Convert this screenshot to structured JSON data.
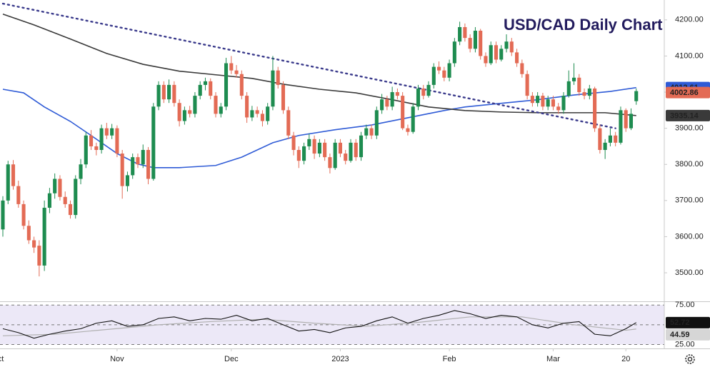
{
  "chart_data": {
    "type": "candlestick",
    "title": "USD/CAD Daily Chart",
    "up_color": "#1e8c50",
    "down_color": "#e36b55",
    "xlim": [
      -0.55,
      127.4
    ],
    "ylim": [
      3425,
      4255
    ],
    "yticks": [
      {
        "value": 3500,
        "label": "3500.00"
      },
      {
        "value": 3600,
        "label": "3600.00"
      },
      {
        "value": 3700,
        "label": "3700.00"
      },
      {
        "value": 3800,
        "label": "3800.00"
      },
      {
        "value": 3900,
        "label": "3900.00"
      },
      {
        "value": 4000,
        "label": "4000.00"
      },
      {
        "value": 4100,
        "label": "4100.00"
      },
      {
        "value": 4200,
        "label": "4200.00"
      }
    ],
    "xticks": [
      {
        "value": -1,
        "label": "Oct"
      },
      {
        "value": 22,
        "label": "Nov"
      },
      {
        "value": 44,
        "label": "Dec"
      },
      {
        "value": 65,
        "label": "2023"
      },
      {
        "value": 86,
        "label": "Feb"
      },
      {
        "value": 106,
        "label": "Mar"
      },
      {
        "value": 120,
        "label": "20"
      }
    ],
    "candles": [
      [
        3620,
        3712,
        3600,
        3700
      ],
      [
        3700,
        3810,
        3690,
        3800
      ],
      [
        3800,
        3812,
        3730,
        3740
      ],
      [
        3740,
        3755,
        3680,
        3690
      ],
      [
        3690,
        3700,
        3620,
        3630
      ],
      [
        3630,
        3645,
        3580,
        3590
      ],
      [
        3590,
        3600,
        3555,
        3570
      ],
      [
        3575,
        3590,
        3490,
        3520
      ],
      [
        3520,
        3700,
        3505,
        3680
      ],
      [
        3680,
        3735,
        3665,
        3720
      ],
      [
        3720,
        3775,
        3705,
        3760
      ],
      [
        3760,
        3770,
        3700,
        3710
      ],
      [
        3710,
        3725,
        3680,
        3690
      ],
      [
        3690,
        3700,
        3650,
        3660
      ],
      [
        3660,
        3770,
        3650,
        3760
      ],
      [
        3760,
        3815,
        3745,
        3800
      ],
      [
        3800,
        3890,
        3790,
        3880
      ],
      [
        3880,
        3895,
        3840,
        3850
      ],
      [
        3850,
        3860,
        3825,
        3840
      ],
      [
        3840,
        3910,
        3830,
        3900
      ],
      [
        3900,
        3915,
        3870,
        3880
      ],
      [
        3880,
        3912,
        3870,
        3900
      ],
      [
        3900,
        3908,
        3820,
        3830
      ],
      [
        3830,
        3840,
        3705,
        3740
      ],
      [
        3740,
        3780,
        3725,
        3770
      ],
      [
        3770,
        3830,
        3760,
        3820
      ],
      [
        3820,
        3830,
        3790,
        3800
      ],
      [
        3800,
        3855,
        3790,
        3840
      ],
      [
        3840,
        3848,
        3745,
        3760
      ],
      [
        3760,
        3970,
        3755,
        3960
      ],
      [
        3960,
        4030,
        3950,
        4020
      ],
      [
        4020,
        4030,
        3970,
        3980
      ],
      [
        3980,
        4035,
        3970,
        4020
      ],
      [
        4020,
        4030,
        3960,
        3970
      ],
      [
        3970,
        3980,
        3905,
        3920
      ],
      [
        3920,
        3960,
        3910,
        3950
      ],
      [
        3950,
        3962,
        3930,
        3940
      ],
      [
        3940,
        4000,
        3930,
        3990
      ],
      [
        3990,
        4030,
        3980,
        4020
      ],
      [
        4020,
        4040,
        4005,
        4030
      ],
      [
        4030,
        4038,
        3980,
        3990
      ],
      [
        3990,
        4000,
        3930,
        3940
      ],
      [
        3940,
        3970,
        3930,
        3960
      ],
      [
        3960,
        4095,
        3950,
        4080
      ],
      [
        4080,
        4100,
        4050,
        4060
      ],
      [
        4060,
        4075,
        4040,
        4050
      ],
      [
        4050,
        4060,
        3980,
        3990
      ],
      [
        3990,
        4000,
        3915,
        3930
      ],
      [
        3930,
        3962,
        3920,
        3950
      ],
      [
        3950,
        3960,
        3930,
        3940
      ],
      [
        3940,
        3950,
        3905,
        3920
      ],
      [
        3920,
        3970,
        3910,
        3960
      ],
      [
        3960,
        4100,
        3950,
        4060
      ],
      [
        4060,
        4070,
        4010,
        4020
      ],
      [
        4020,
        4030,
        3940,
        3950
      ],
      [
        3950,
        3960,
        3870,
        3880
      ],
      [
        3880,
        3890,
        3825,
        3840
      ],
      [
        3840,
        3850,
        3790,
        3810
      ],
      [
        3810,
        3860,
        3800,
        3850
      ],
      [
        3850,
        3885,
        3840,
        3870
      ],
      [
        3870,
        3880,
        3815,
        3830
      ],
      [
        3830,
        3870,
        3820,
        3860
      ],
      [
        3860,
        3870,
        3810,
        3820
      ],
      [
        3820,
        3830,
        3775,
        3790
      ],
      [
        3790,
        3870,
        3785,
        3860
      ],
      [
        3860,
        3870,
        3820,
        3830
      ],
      [
        3830,
        3840,
        3800,
        3810
      ],
      [
        3810,
        3870,
        3805,
        3860
      ],
      [
        3860,
        3870,
        3810,
        3820
      ],
      [
        3820,
        3890,
        3810,
        3880
      ],
      [
        3880,
        3910,
        3870,
        3900
      ],
      [
        3900,
        3910,
        3870,
        3880
      ],
      [
        3880,
        3960,
        3870,
        3950
      ],
      [
        3950,
        3995,
        3940,
        3980
      ],
      [
        3980,
        3990,
        3950,
        3960
      ],
      [
        3960,
        4015,
        3950,
        4000
      ],
      [
        4000,
        4010,
        3980,
        3990
      ],
      [
        3990,
        4000,
        3895,
        3900
      ],
      [
        3900,
        3910,
        3880,
        3890
      ],
      [
        3890,
        3970,
        3885,
        3960
      ],
      [
        3960,
        4020,
        3950,
        4010
      ],
      [
        4010,
        4020,
        3980,
        3990
      ],
      [
        3990,
        4030,
        3985,
        4020
      ],
      [
        4020,
        4080,
        4010,
        4070
      ],
      [
        4070,
        4085,
        4050,
        4060
      ],
      [
        4060,
        4070,
        4030,
        4040
      ],
      [
        4040,
        4090,
        4030,
        4080
      ],
      [
        4080,
        4150,
        4070,
        4140
      ],
      [
        4140,
        4195,
        4130,
        4180
      ],
      [
        4180,
        4190,
        4140,
        4150
      ],
      [
        4150,
        4160,
        4110,
        4120
      ],
      [
        4120,
        4180,
        4110,
        4170
      ],
      [
        4170,
        4175,
        4090,
        4100
      ],
      [
        4100,
        4110,
        4070,
        4080
      ],
      [
        4080,
        4140,
        4075,
        4130
      ],
      [
        4130,
        4140,
        4080,
        4090
      ],
      [
        4090,
        4130,
        4085,
        4120
      ],
      [
        4120,
        4160,
        4110,
        4140
      ],
      [
        4140,
        4150,
        4100,
        4110
      ],
      [
        4110,
        4120,
        4070,
        4080
      ],
      [
        4080,
        4090,
        4040,
        4050
      ],
      [
        4050,
        4060,
        3980,
        3990
      ],
      [
        3990,
        4000,
        3960,
        3970
      ],
      [
        3970,
        4000,
        3960,
        3990
      ],
      [
        3990,
        3998,
        3950,
        3960
      ],
      [
        3960,
        3990,
        3950,
        3980
      ],
      [
        3980,
        3990,
        3950,
        3960
      ],
      [
        3960,
        3970,
        3940,
        3950
      ],
      [
        3950,
        4000,
        3940,
        3990
      ],
      [
        3990,
        4060,
        3985,
        4030
      ],
      [
        4030,
        4080,
        4020,
        4040
      ],
      [
        4040,
        4050,
        3990,
        4000
      ],
      [
        4000,
        4010,
        3980,
        3990
      ],
      [
        3990,
        4020,
        3980,
        4010
      ],
      [
        4010,
        4015,
        3890,
        3900
      ],
      [
        3900,
        3910,
        3830,
        3840
      ],
      [
        3840,
        3870,
        3815,
        3860
      ],
      [
        3860,
        3900,
        3850,
        3880
      ],
      [
        3880,
        3890,
        3850,
        3860
      ],
      [
        3860,
        3960,
        3855,
        3950
      ],
      [
        3950,
        3955,
        3890,
        3900
      ],
      [
        3900,
        3955,
        3895,
        3940
      ],
      [
        3975,
        4010,
        3965,
        4002.86
      ]
    ],
    "last_close_color": "#e36b55",
    "lines": [
      {
        "color": "#2f5bd6",
        "x": [
          0,
          4,
          8,
          13,
          17,
          22,
          26,
          29,
          34,
          41,
          46,
          52,
          57,
          64,
          71,
          78,
          85,
          89,
          96,
          103,
          110,
          117,
          122
        ],
        "values": [
          4008,
          3998,
          3959,
          3919,
          3880,
          3830,
          3801,
          3791,
          3791,
          3797,
          3820,
          3860,
          3880,
          3896,
          3909,
          3929,
          3949,
          3959,
          3969,
          3979,
          3992,
          4002,
          4012.61
        ]
      },
      {
        "color": "#3a3a3a",
        "x": [
          0,
          6,
          13,
          20,
          27,
          34,
          41,
          48,
          54,
          61,
          68,
          75,
          82,
          89,
          96,
          103,
          110,
          116,
          122
        ],
        "values": [
          4216,
          4186,
          4147,
          4107,
          4077,
          4058,
          4048,
          4038,
          4022,
          4008,
          3998,
          3979,
          3959,
          3949,
          3945,
          3943,
          3943,
          3943,
          3935.14
        ]
      }
    ],
    "trendline": {
      "color": "#3b3b8c",
      "x": [
        0,
        118
      ],
      "values": [
        4245,
        3900
      ]
    },
    "rsi": {
      "ylim": [
        20,
        77
      ],
      "yticks": [
        {
          "value": 25,
          "label": "25.00"
        },
        {
          "value": 75,
          "label": "75.00"
        }
      ],
      "levels": [
        25,
        50,
        75
      ],
      "band_color": "#ece8f7",
      "line": {
        "color": "#111111",
        "x": [
          0,
          3,
          6,
          9,
          12,
          15,
          18,
          21,
          24,
          27,
          30,
          33,
          36,
          39,
          42,
          45,
          48,
          51,
          54,
          57,
          60,
          63,
          66,
          69,
          72,
          75,
          78,
          81,
          84,
          87,
          90,
          93,
          96,
          99,
          102,
          105,
          108,
          111,
          114,
          117,
          120,
          122
        ],
        "values": [
          45,
          40,
          33,
          38,
          42,
          45,
          52,
          55,
          48,
          50,
          58,
          60,
          55,
          58,
          57,
          62,
          55,
          58,
          50,
          42,
          44,
          40,
          46,
          48,
          55,
          60,
          52,
          58,
          62,
          68,
          64,
          58,
          62,
          60,
          50,
          46,
          52,
          54,
          38,
          36,
          45,
          52.72
        ]
      },
      "ma": {
        "color": "#b0b0b0",
        "x": [
          0,
          10,
          20,
          30,
          40,
          50,
          60,
          70,
          80,
          90,
          100,
          110,
          120,
          122
        ],
        "values": [
          36,
          38,
          44,
          50,
          54,
          57,
          52,
          48,
          53,
          60,
          60,
          50,
          43,
          44.59
        ]
      }
    }
  }
}
